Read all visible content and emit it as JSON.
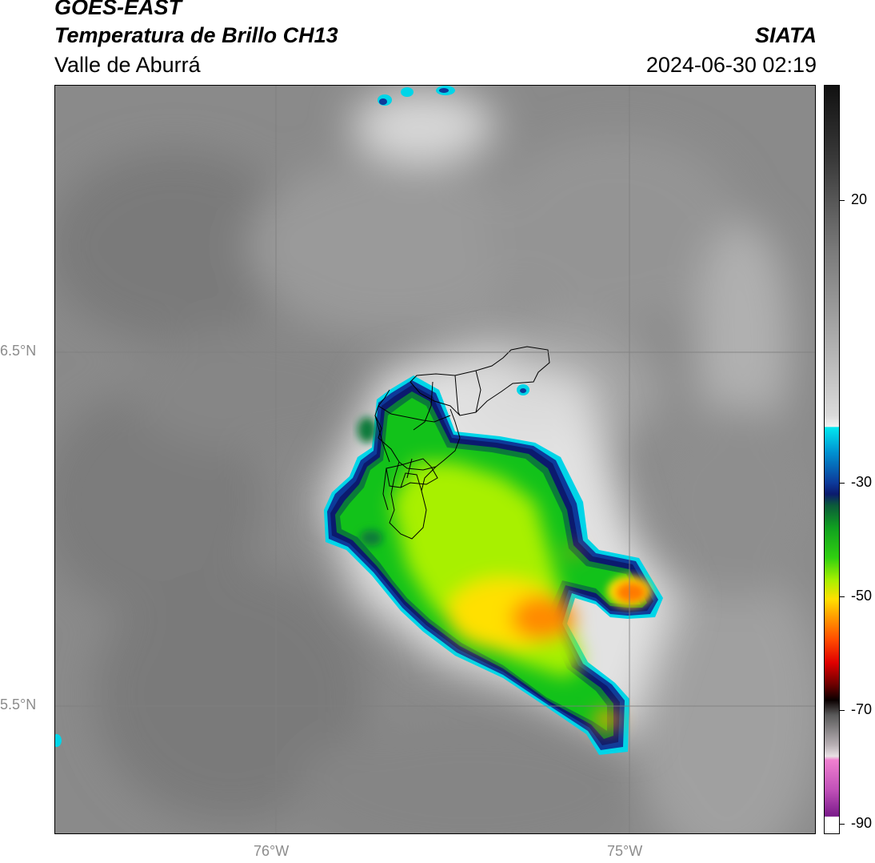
{
  "header": {
    "satellite": "GOES-EAST",
    "product": "Temperatura de Brillo CH13",
    "region": "Valle de Aburrá",
    "organization": "SIATA",
    "datetime": "2024-06-30 02:19"
  },
  "map": {
    "lat_labels": [
      "6.5°N",
      "5.5°N"
    ],
    "lon_labels": [
      "76°W",
      "75°W"
    ],
    "grid_color": "#7f7f7f",
    "background_gray": "#8a8a8a"
  },
  "colorbar": {
    "tick_labels": [
      "20",
      "-30",
      "-50",
      "-70",
      "-90"
    ],
    "range": [
      -92,
      40
    ],
    "colors": {
      "warm": "#1a1a1a",
      "light": "#f2f2f2",
      "cyan": "#00d5e8",
      "blue": "#0d3a9a",
      "navy": "#0b1a6e",
      "green": "#12c21a",
      "lime": "#a8f000",
      "yellow": "#ffe000",
      "orange": "#ff8a00",
      "red": "#e00000",
      "dark": "#1c0000",
      "pink": "#e070c8",
      "purple": "#8a1a9a"
    }
  }
}
